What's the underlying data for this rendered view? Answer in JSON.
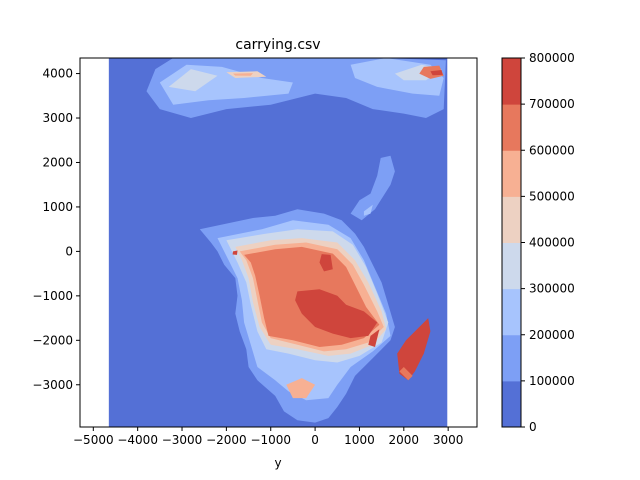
{
  "chart_data": {
    "type": "heatmap",
    "subtype": "filled-contour",
    "title": "carrying.csv",
    "xlabel": "y",
    "ylabel": "",
    "xlim": [
      -5300,
      3650
    ],
    "ylim": [
      -3950,
      4350
    ],
    "data_extent": {
      "x": [
        -4650,
        2980
      ],
      "y": [
        -3950,
        4350
      ]
    },
    "xticks": [
      -5000,
      -4000,
      -3000,
      -2000,
      -1000,
      0,
      1000,
      2000,
      3000
    ],
    "yticks": [
      -3000,
      -2000,
      -1000,
      0,
      1000,
      2000,
      3000,
      4000
    ],
    "grid": false,
    "colorbar": {
      "levels": [
        0,
        100000,
        200000,
        300000,
        400000,
        500000,
        600000,
        700000,
        800000
      ],
      "tick_labels": [
        "0",
        "100000",
        "200000",
        "300000",
        "400000",
        "500000",
        "600000",
        "700000",
        "800000"
      ],
      "colors": [
        "#5470d6",
        "#7d9ff5",
        "#a7c4fd",
        "#cdd9ec",
        "#edd1c2",
        "#f7b093",
        "#e7785d",
        "#cf453c"
      ]
    },
    "background_level": 0,
    "regions": [
      {
        "level": 1,
        "polygon": [
          [
            -3200,
            4350
          ],
          [
            -800,
            4350
          ],
          [
            1500,
            4350
          ],
          [
            2950,
            4300
          ],
          [
            2900,
            3200
          ],
          [
            2500,
            3000
          ],
          [
            2000,
            3100
          ],
          [
            1300,
            3200
          ],
          [
            700,
            3450
          ],
          [
            0,
            3550
          ],
          [
            -1000,
            3300
          ],
          [
            -2000,
            3200
          ],
          [
            -2800,
            3000
          ],
          [
            -3500,
            3200
          ],
          [
            -3800,
            3600
          ],
          [
            -3600,
            4100
          ]
        ]
      },
      {
        "level": 2,
        "polygon": [
          [
            -3500,
            3800
          ],
          [
            -2900,
            4200
          ],
          [
            -2100,
            4150
          ],
          [
            -1200,
            3900
          ],
          [
            -500,
            3800
          ],
          [
            -600,
            3550
          ],
          [
            -1600,
            3450
          ],
          [
            -2400,
            3400
          ],
          [
            -3200,
            3300
          ]
        ]
      },
      {
        "level": 2,
        "polygon": [
          [
            800,
            4200
          ],
          [
            1600,
            4350
          ],
          [
            2600,
            4200
          ],
          [
            2900,
            3900
          ],
          [
            2800,
            3500
          ],
          [
            2200,
            3550
          ],
          [
            1400,
            3700
          ],
          [
            900,
            3900
          ]
        ]
      },
      {
        "level": 3,
        "polygon": [
          [
            -3300,
            3700
          ],
          [
            -2800,
            4100
          ],
          [
            -2200,
            3950
          ],
          [
            -2700,
            3600
          ]
        ]
      },
      {
        "level": 4,
        "polygon": [
          [
            -2000,
            4030
          ],
          [
            -1300,
            4050
          ],
          [
            -1100,
            3930
          ],
          [
            -1800,
            3900
          ]
        ]
      },
      {
        "level": 5,
        "polygon": [
          [
            -1850,
            4000
          ],
          [
            -1400,
            4010
          ],
          [
            -1450,
            3950
          ],
          [
            -1800,
            3955
          ]
        ]
      },
      {
        "level": 3,
        "polygon": [
          [
            1800,
            4000
          ],
          [
            2400,
            4200
          ],
          [
            2850,
            4100
          ],
          [
            2500,
            3850
          ],
          [
            2000,
            3850
          ]
        ]
      },
      {
        "level": 6,
        "polygon": [
          [
            2450,
            4150
          ],
          [
            2800,
            4180
          ],
          [
            2900,
            3950
          ],
          [
            2600,
            3880
          ],
          [
            2350,
            4000
          ]
        ]
      },
      {
        "level": 7,
        "polygon": [
          [
            2600,
            4050
          ],
          [
            2850,
            4080
          ],
          [
            2880,
            3970
          ],
          [
            2650,
            3960
          ]
        ]
      },
      {
        "level": 1,
        "polygon": [
          [
            1480,
            2100
          ],
          [
            1700,
            2150
          ],
          [
            1800,
            1800
          ],
          [
            1700,
            1500
          ],
          [
            1350,
            950
          ],
          [
            1050,
            700
          ],
          [
            800,
            850
          ],
          [
            1000,
            1150
          ],
          [
            1250,
            1300
          ],
          [
            1400,
            1700
          ]
        ]
      },
      {
        "level": 2,
        "polygon": [
          [
            1100,
            900
          ],
          [
            1300,
            1050
          ],
          [
            1250,
            850
          ],
          [
            1100,
            800
          ]
        ]
      },
      {
        "level": 1,
        "polygon": [
          [
            -2600,
            500
          ],
          [
            -1400,
            750
          ],
          [
            -900,
            800
          ],
          [
            -400,
            950
          ],
          [
            200,
            850
          ],
          [
            600,
            700
          ],
          [
            900,
            400
          ],
          [
            1100,
            100
          ],
          [
            1300,
            -300
          ],
          [
            1500,
            -700
          ],
          [
            1650,
            -1200
          ],
          [
            1800,
            -1700
          ],
          [
            1700,
            -2000
          ],
          [
            1300,
            -2400
          ],
          [
            900,
            -2800
          ],
          [
            700,
            -3200
          ],
          [
            500,
            -3500
          ],
          [
            300,
            -3750
          ],
          [
            0,
            -3850
          ],
          [
            -400,
            -3800
          ],
          [
            -700,
            -3600
          ],
          [
            -900,
            -3250
          ],
          [
            -1300,
            -2900
          ],
          [
            -1500,
            -2600
          ],
          [
            -1550,
            -2200
          ],
          [
            -1700,
            -1800
          ],
          [
            -1800,
            -1400
          ],
          [
            -1750,
            -1000
          ],
          [
            -1800,
            -600
          ],
          [
            -2050,
            -300
          ],
          [
            -2200,
            0
          ],
          [
            -2350,
            200
          ]
        ]
      },
      {
        "level": 2,
        "polygon": [
          [
            -2200,
            300
          ],
          [
            -1200,
            500
          ],
          [
            -500,
            700
          ],
          [
            300,
            600
          ],
          [
            800,
            300
          ],
          [
            1100,
            -200
          ],
          [
            1350,
            -800
          ],
          [
            1600,
            -1400
          ],
          [
            1700,
            -1900
          ],
          [
            1300,
            -2250
          ],
          [
            800,
            -2600
          ],
          [
            500,
            -3000
          ],
          [
            300,
            -3300
          ],
          [
            -200,
            -3350
          ],
          [
            -600,
            -3150
          ],
          [
            -900,
            -2900
          ],
          [
            -1300,
            -2600
          ],
          [
            -1450,
            -2100
          ],
          [
            -1600,
            -1600
          ],
          [
            -1650,
            -1100
          ],
          [
            -1750,
            -600
          ],
          [
            -1950,
            -200
          ]
        ]
      },
      {
        "level": 3,
        "polygon": [
          [
            -2000,
            250
          ],
          [
            -1100,
            400
          ],
          [
            -400,
            500
          ],
          [
            400,
            450
          ],
          [
            850,
            150
          ],
          [
            1150,
            -350
          ],
          [
            1400,
            -950
          ],
          [
            1650,
            -1600
          ],
          [
            1500,
            -2050
          ],
          [
            1000,
            -2350
          ],
          [
            500,
            -2500
          ],
          [
            0,
            -2450
          ],
          [
            -600,
            -2300
          ],
          [
            -1100,
            -2200
          ],
          [
            -1300,
            -1800
          ],
          [
            -1450,
            -1200
          ],
          [
            -1550,
            -700
          ],
          [
            -1750,
            -250
          ]
        ]
      },
      {
        "level": 4,
        "polygon": [
          [
            -1800,
            100
          ],
          [
            -1000,
            250
          ],
          [
            -300,
            300
          ],
          [
            500,
            200
          ],
          [
            900,
            -200
          ],
          [
            1200,
            -700
          ],
          [
            1500,
            -1350
          ],
          [
            1600,
            -1750
          ],
          [
            1300,
            -2100
          ],
          [
            800,
            -2300
          ],
          [
            300,
            -2350
          ],
          [
            -400,
            -2200
          ],
          [
            -1000,
            -2100
          ],
          [
            -1250,
            -1700
          ],
          [
            -1400,
            -1150
          ],
          [
            -1500,
            -600
          ],
          [
            -1650,
            -200
          ]
        ]
      },
      {
        "level": 5,
        "polygon": [
          [
            -1700,
            0
          ],
          [
            -900,
            150
          ],
          [
            -200,
            200
          ],
          [
            500,
            50
          ],
          [
            850,
            -300
          ],
          [
            1100,
            -750
          ],
          [
            1400,
            -1350
          ],
          [
            1550,
            -1700
          ],
          [
            1200,
            -2050
          ],
          [
            700,
            -2200
          ],
          [
            200,
            -2250
          ],
          [
            -400,
            -2100
          ],
          [
            -1000,
            -1950
          ],
          [
            -1200,
            -1600
          ],
          [
            -1300,
            -1100
          ],
          [
            -1400,
            -600
          ],
          [
            -1550,
            -200
          ]
        ]
      },
      {
        "level": 6,
        "polygon": [
          [
            -1600,
            -80
          ],
          [
            -900,
            50
          ],
          [
            -300,
            100
          ],
          [
            400,
            -50
          ],
          [
            700,
            -350
          ],
          [
            900,
            -750
          ],
          [
            1150,
            -1250
          ],
          [
            1450,
            -1650
          ],
          [
            1100,
            -1950
          ],
          [
            600,
            -2100
          ],
          [
            100,
            -2150
          ],
          [
            -500,
            -2000
          ],
          [
            -1050,
            -1900
          ],
          [
            -1150,
            -1500
          ],
          [
            -1250,
            -1000
          ],
          [
            -1350,
            -550
          ],
          [
            -1450,
            -250
          ]
        ]
      },
      {
        "level": 7,
        "polygon": [
          [
            -400,
            -900
          ],
          [
            100,
            -850
          ],
          [
            500,
            -1000
          ],
          [
            700,
            -1200
          ],
          [
            1100,
            -1350
          ],
          [
            1400,
            -1600
          ],
          [
            1200,
            -1900
          ],
          [
            800,
            -1950
          ],
          [
            400,
            -1850
          ],
          [
            0,
            -1700
          ],
          [
            -300,
            -1400
          ],
          [
            -450,
            -1100
          ]
        ]
      },
      {
        "level": 7,
        "polygon": [
          [
            150,
            -60
          ],
          [
            350,
            -80
          ],
          [
            400,
            -400
          ],
          [
            200,
            -450
          ],
          [
            100,
            -250
          ]
        ]
      },
      {
        "level": 7,
        "polygon": [
          [
            1250,
            -1900
          ],
          [
            1450,
            -1750
          ],
          [
            1350,
            -2150
          ],
          [
            1200,
            -2100
          ]
        ]
      },
      {
        "level": 5,
        "polygon": [
          [
            -650,
            -3000
          ],
          [
            -300,
            -2850
          ],
          [
            0,
            -3000
          ],
          [
            -200,
            -3300
          ],
          [
            -500,
            -3300
          ]
        ]
      },
      {
        "level": 7,
        "polygon": [
          [
            -1850,
            0
          ],
          [
            -1750,
            20
          ],
          [
            -1760,
            -80
          ],
          [
            -1860,
            -70
          ]
        ]
      },
      {
        "level": 7,
        "polygon": [
          [
            2050,
            -2000
          ],
          [
            2350,
            -1700
          ],
          [
            2550,
            -1500
          ],
          [
            2600,
            -1800
          ],
          [
            2450,
            -2300
          ],
          [
            2250,
            -2700
          ],
          [
            2100,
            -2900
          ],
          [
            1900,
            -2750
          ],
          [
            1850,
            -2300
          ]
        ]
      },
      {
        "level": 6,
        "polygon": [
          [
            1900,
            -2700
          ],
          [
            2100,
            -2900
          ],
          [
            2200,
            -2800
          ],
          [
            2000,
            -2600
          ]
        ]
      }
    ]
  }
}
